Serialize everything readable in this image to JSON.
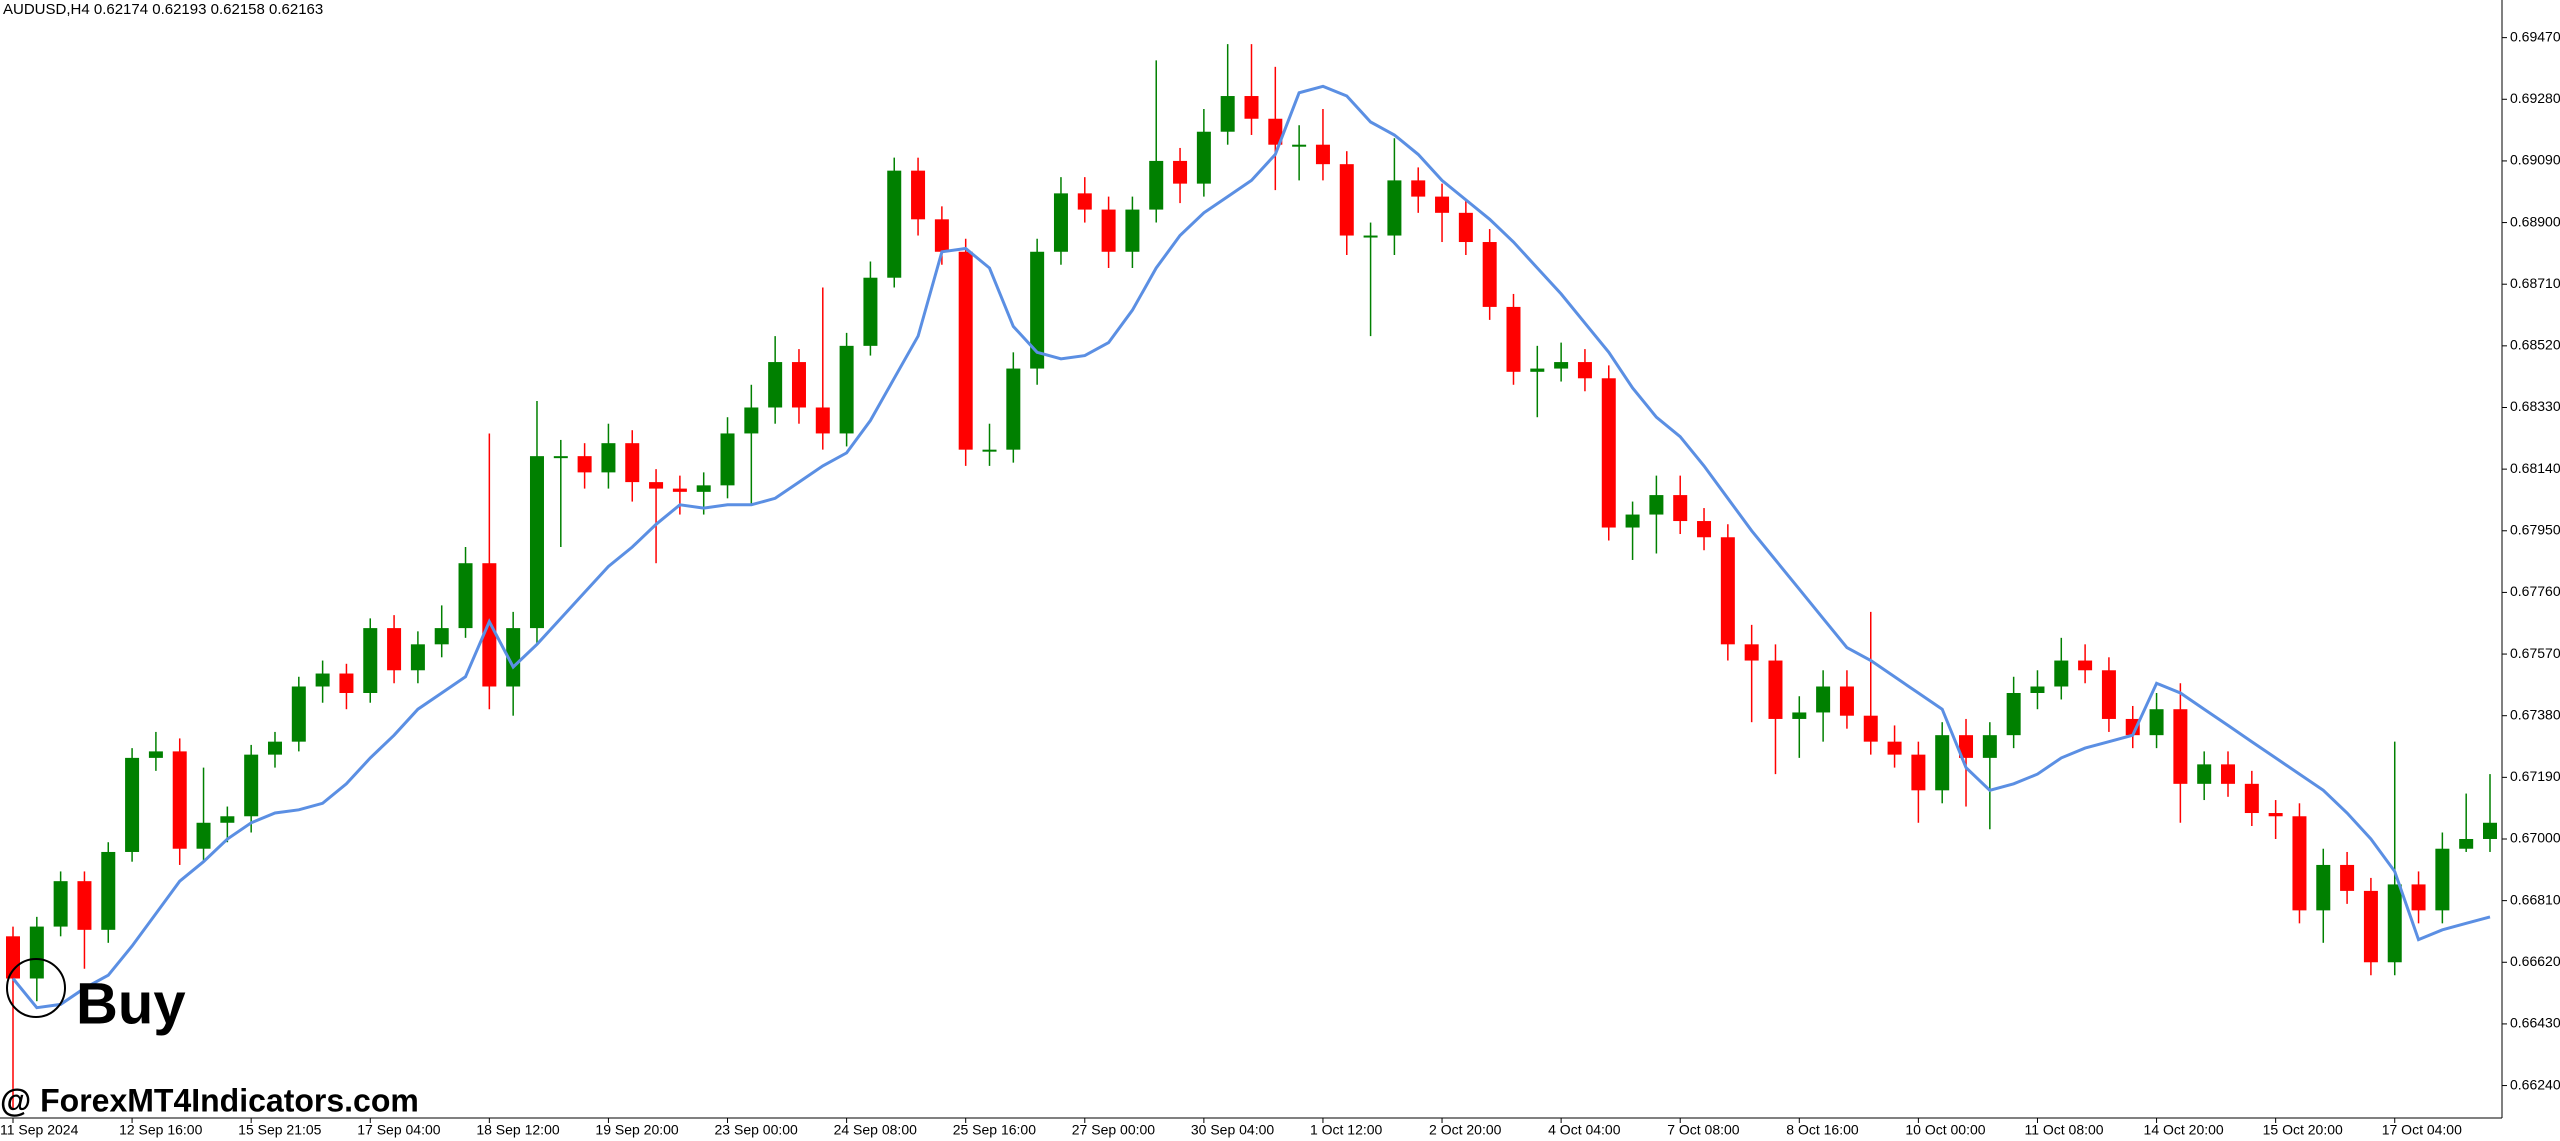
{
  "chart_data": {
    "type": "candlestick",
    "title": "AUDUSD,H4  0.62174 0.62193 0.62158 0.62163",
    "annotations": [
      "Buy"
    ],
    "watermark": "@ ForexMT4Indicators.com",
    "up_color": "#008000",
    "down_color": "#ff0000",
    "categories": [
      "11 Sep 2024",
      null,
      null,
      null,
      null,
      "12 Sep 16:00",
      null,
      null,
      null,
      null,
      "15 Sep 21:05",
      null,
      null,
      null,
      null,
      "17 Sep 04:00",
      null,
      null,
      null,
      null,
      "18 Sep 12:00",
      null,
      null,
      null,
      null,
      "19 Sep 20:00",
      null,
      null,
      null,
      null,
      "23 Sep 00:00",
      null,
      null,
      null,
      null,
      "24 Sep 08:00",
      null,
      null,
      null,
      null,
      "25 Sep 16:00",
      null,
      null,
      null,
      null,
      "27 Sep 00:00",
      null,
      null,
      null,
      null,
      "30 Sep 04:00",
      null,
      null,
      null,
      null,
      "1 Oct 12:00",
      null,
      null,
      null,
      null,
      "2 Oct 20:00",
      null,
      null,
      null,
      null,
      "4 Oct 04:00",
      null,
      null,
      null,
      null,
      "7 Oct 08:00",
      null,
      null,
      null,
      null,
      "8 Oct 16:00",
      null,
      null,
      null,
      null,
      "10 Oct 00:00",
      null,
      null,
      null,
      null,
      "11 Oct 08:00",
      null,
      null,
      null,
      null,
      "14 Oct 20:00",
      null,
      null,
      null,
      null,
      "15 Oct 20:00",
      null,
      null,
      null,
      null,
      "17 Oct 04:00",
      null,
      null,
      null,
      null
    ],
    "open": [
      0.667,
      0.6657,
      0.6673,
      0.6687,
      0.6672,
      0.6696,
      0.6725,
      0.6727,
      0.6697,
      0.6705,
      0.6707,
      0.6726,
      0.673,
      0.6747,
      0.6751,
      0.6745,
      0.6765,
      0.6752,
      0.676,
      0.6765,
      0.6785,
      0.6747,
      0.6765,
      0.6818,
      0.6818,
      0.6813,
      0.6822,
      0.681,
      0.6808,
      0.6807,
      0.6809,
      0.6825,
      0.6833,
      0.6847,
      0.6833,
      0.6825,
      0.6852,
      0.6873,
      0.6906,
      0.6891,
      0.6881,
      0.682,
      0.682,
      0.6845,
      0.6881,
      0.6899,
      0.6894,
      0.6881,
      0.6894,
      0.6909,
      0.6902,
      0.6918,
      0.6929,
      0.6922,
      0.6914,
      0.6914,
      0.6908,
      0.6886,
      0.6886,
      0.6903,
      0.6898,
      0.6893,
      0.6884,
      0.6864,
      0.6844,
      0.6845,
      0.6847,
      0.6842,
      0.6796,
      0.68,
      0.6806,
      0.6798,
      0.6793,
      0.676,
      0.6755,
      0.6737,
      0.6739,
      0.6747,
      0.6738,
      0.673,
      0.6726,
      0.6715,
      0.6732,
      0.6725,
      0.6732,
      0.6745,
      0.6747,
      0.6755,
      0.6752,
      0.6737,
      0.6732,
      0.674,
      0.6717,
      0.6723,
      0.6717,
      0.6708,
      0.6707,
      0.6678,
      0.6692,
      0.6684,
      0.6662,
      0.6686,
      0.6678,
      0.6697,
      0.67
    ],
    "high": [
      0.6673,
      0.6676,
      0.669,
      0.669,
      0.6699,
      0.6728,
      0.6733,
      0.6731,
      0.6722,
      0.671,
      0.6729,
      0.6733,
      0.675,
      0.6755,
      0.6754,
      0.6768,
      0.6769,
      0.6764,
      0.6772,
      0.679,
      0.6825,
      0.677,
      0.6835,
      0.6823,
      0.6822,
      0.6828,
      0.6826,
      0.6814,
      0.6812,
      0.6813,
      0.683,
      0.684,
      0.6855,
      0.6851,
      0.687,
      0.6856,
      0.6878,
      0.691,
      0.691,
      0.6895,
      0.6885,
      0.6828,
      0.685,
      0.6885,
      0.6904,
      0.6904,
      0.6898,
      0.6898,
      0.694,
      0.6913,
      0.6925,
      0.6945,
      0.6945,
      0.6938,
      0.692,
      0.6925,
      0.6912,
      0.689,
      0.6916,
      0.6907,
      0.6902,
      0.6897,
      0.6888,
      0.6868,
      0.6852,
      0.6853,
      0.6851,
      0.6846,
      0.6804,
      0.6812,
      0.6812,
      0.6802,
      0.6797,
      0.6766,
      0.676,
      0.6744,
      0.6752,
      0.6752,
      0.677,
      0.6735,
      0.673,
      0.6736,
      0.6737,
      0.6736,
      0.675,
      0.6752,
      0.6762,
      0.676,
      0.6756,
      0.6741,
      0.6745,
      0.6748,
      0.6727,
      0.6727,
      0.6721,
      0.6712,
      0.6711,
      0.6697,
      0.6696,
      0.6688,
      0.673,
      0.669,
      0.6702,
      0.6714,
      0.672
    ],
    "low": [
      0.6617,
      0.665,
      0.667,
      0.666,
      0.6668,
      0.6693,
      0.6721,
      0.6692,
      0.6693,
      0.6699,
      0.6702,
      0.6722,
      0.6727,
      0.6742,
      0.674,
      0.6742,
      0.6748,
      0.6748,
      0.6756,
      0.6762,
      0.674,
      0.6738,
      0.676,
      0.679,
      0.6808,
      0.6808,
      0.6804,
      0.6785,
      0.68,
      0.68,
      0.6805,
      0.6803,
      0.6828,
      0.6828,
      0.682,
      0.6821,
      0.6849,
      0.687,
      0.6886,
      0.6877,
      0.6815,
      0.6815,
      0.6816,
      0.684,
      0.6877,
      0.689,
      0.6876,
      0.6876,
      0.689,
      0.6896,
      0.6898,
      0.6914,
      0.6917,
      0.69,
      0.6903,
      0.6903,
      0.688,
      0.6855,
      0.688,
      0.6893,
      0.6884,
      0.688,
      0.686,
      0.684,
      0.683,
      0.6841,
      0.6838,
      0.6792,
      0.6786,
      0.6788,
      0.6794,
      0.6789,
      0.6755,
      0.6736,
      0.672,
      0.6725,
      0.673,
      0.6734,
      0.6726,
      0.6722,
      0.6705,
      0.6711,
      0.671,
      0.6703,
      0.6728,
      0.674,
      0.6743,
      0.6748,
      0.6733,
      0.6728,
      0.6728,
      0.6705,
      0.6712,
      0.6713,
      0.6704,
      0.67,
      0.6674,
      0.6668,
      0.668,
      0.6658,
      0.6658,
      0.6674,
      0.6674,
      0.6696,
      0.6696
    ],
    "close": [
      0.6657,
      0.6673,
      0.6687,
      0.6672,
      0.6696,
      0.6725,
      0.6727,
      0.6697,
      0.6705,
      0.6707,
      0.6726,
      0.673,
      0.6747,
      0.6751,
      0.6745,
      0.6765,
      0.6752,
      0.676,
      0.6765,
      0.6785,
      0.6747,
      0.6765,
      0.6818,
      0.6818,
      0.6813,
      0.6822,
      0.681,
      0.6808,
      0.6807,
      0.6809,
      0.6825,
      0.6833,
      0.6847,
      0.6833,
      0.6825,
      0.6852,
      0.6873,
      0.6906,
      0.6891,
      0.6881,
      0.682,
      0.682,
      0.6845,
      0.6881,
      0.6899,
      0.6894,
      0.6881,
      0.6894,
      0.6909,
      0.6902,
      0.6918,
      0.6929,
      0.6922,
      0.6914,
      0.6914,
      0.6908,
      0.6886,
      0.6886,
      0.6903,
      0.6898,
      0.6893,
      0.6884,
      0.6864,
      0.6844,
      0.6845,
      0.6847,
      0.6842,
      0.6796,
      0.68,
      0.6806,
      0.6798,
      0.6793,
      0.676,
      0.6755,
      0.6737,
      0.6739,
      0.6747,
      0.6738,
      0.673,
      0.6726,
      0.6715,
      0.6732,
      0.6725,
      0.6732,
      0.6745,
      0.6747,
      0.6755,
      0.6752,
      0.6737,
      0.6732,
      0.674,
      0.6717,
      0.6723,
      0.6717,
      0.6708,
      0.6707,
      0.6678,
      0.6692,
      0.6684,
      0.6662,
      0.6686,
      0.6678,
      0.6697,
      0.67,
      0.6705
    ],
    "ma": {
      "color": "#5b8fe3",
      "values": [
        0.6657,
        0.6648,
        0.6649,
        0.6654,
        0.6658,
        0.6667,
        0.6677,
        0.6687,
        0.6693,
        0.67,
        0.6705,
        0.6708,
        0.6709,
        0.6711,
        0.6717,
        0.6725,
        0.6732,
        0.674,
        0.6745,
        0.675,
        0.6767,
        0.6753,
        0.676,
        0.6768,
        0.6776,
        0.6784,
        0.679,
        0.6797,
        0.6803,
        0.6802,
        0.6803,
        0.6803,
        0.6805,
        0.681,
        0.6815,
        0.6819,
        0.6829,
        0.6842,
        0.6855,
        0.6881,
        0.6882,
        0.6876,
        0.6858,
        0.685,
        0.6848,
        0.6849,
        0.6853,
        0.6863,
        0.6876,
        0.6886,
        0.6893,
        0.6898,
        0.6903,
        0.6911,
        0.693,
        0.6932,
        0.6929,
        0.6921,
        0.6917,
        0.6911,
        0.6903,
        0.6897,
        0.6891,
        0.6884,
        0.6876,
        0.6868,
        0.6859,
        0.685,
        0.6839,
        0.683,
        0.6824,
        0.6815,
        0.6805,
        0.6795,
        0.6786,
        0.6777,
        0.6768,
        0.6759,
        0.6755,
        0.675,
        0.6745,
        0.674,
        0.6722,
        0.6715,
        0.6717,
        0.672,
        0.6725,
        0.6728,
        0.673,
        0.6732,
        0.6748,
        0.6745,
        0.674,
        0.6735,
        0.673,
        0.6725,
        0.672,
        0.6715,
        0.6708,
        0.67,
        0.669,
        0.6669,
        0.6672,
        0.6674,
        0.6676
      ]
    },
    "ylim": [
      0.6614,
      0.69586
    ],
    "yticks": [
      {
        "value": 0.6947,
        "label": "0.69470"
      },
      {
        "value": 0.6928,
        "label": "0.69280"
      },
      {
        "value": 0.6909,
        "label": "0.69090"
      },
      {
        "value": 0.689,
        "label": "0.68900"
      },
      {
        "value": 0.6871,
        "label": "0.68710"
      },
      {
        "value": 0.6852,
        "label": "0.68520"
      },
      {
        "value": 0.6833,
        "label": "0.68330"
      },
      {
        "value": 0.6814,
        "label": "0.68140"
      },
      {
        "value": 0.6795,
        "label": "0.67950"
      },
      {
        "value": 0.6776,
        "label": "0.67760"
      },
      {
        "value": 0.6757,
        "label": "0.67570"
      },
      {
        "value": 0.6738,
        "label": "0.67380"
      },
      {
        "value": 0.6719,
        "label": "0.67190"
      },
      {
        "value": 0.67,
        "label": "0.67000"
      },
      {
        "value": 0.6681,
        "label": "0.66810"
      },
      {
        "value": 0.6662,
        "label": "0.66620"
      },
      {
        "value": 0.6643,
        "label": "0.66430"
      },
      {
        "value": 0.6624,
        "label": "0.66240"
      }
    ],
    "grid": false
  }
}
